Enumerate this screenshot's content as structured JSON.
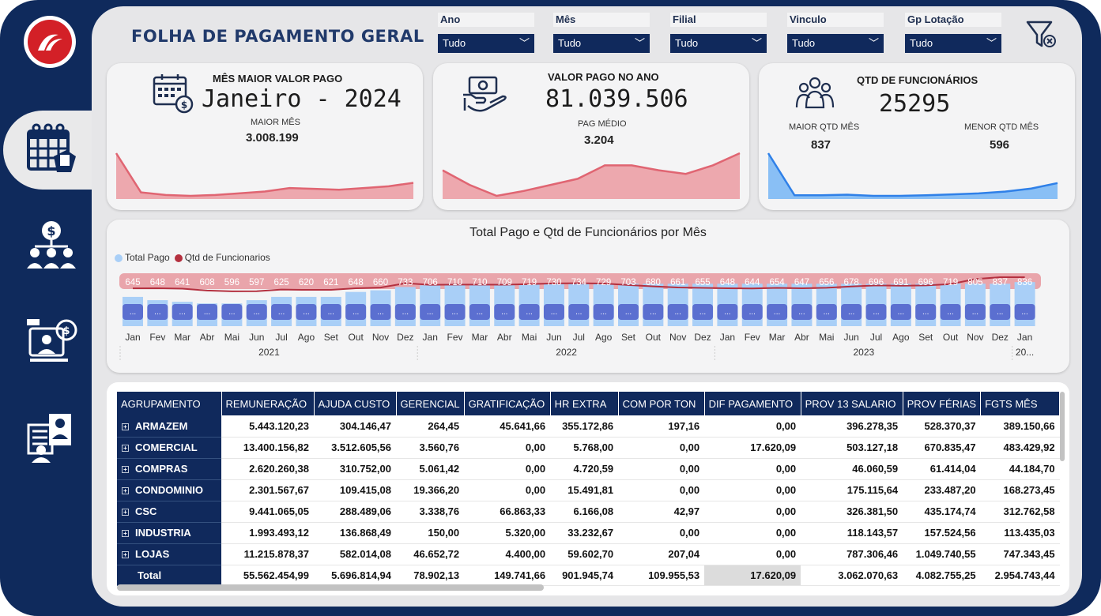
{
  "header": {
    "title": "FOLHA DE PAGAMENTO GERAL"
  },
  "filters": [
    {
      "label": "Ano",
      "value": "Tudo"
    },
    {
      "label": "Mês",
      "value": "Tudo"
    },
    {
      "label": "Filial",
      "value": "Tudo"
    },
    {
      "label": "Vinculo",
      "value": "Tudo"
    },
    {
      "label": "Gp Lotação",
      "value": "Tudo"
    }
  ],
  "cards": {
    "maior_mes": {
      "title": "MÊS MAIOR VALOR PAGO",
      "big": "Janeiro - 2024",
      "sub_label": "MAIOR MÊS",
      "sub_value": "3.008.199",
      "color": "#e58f96"
    },
    "valor_ano": {
      "title": "VALOR PAGO NO ANO",
      "big": "81.039.506",
      "sub_label": "PAG MÉDIO",
      "sub_value": "3.204",
      "color": "#e58f96"
    },
    "funcionarios": {
      "title": "QTD DE FUNCIONÁRIOS",
      "big": "25295",
      "left_label": "MAIOR QTD MÊS",
      "left_value": "837",
      "right_label": "MENOR QTD MÊS",
      "right_value": "596",
      "color": "#3f8ee8"
    }
  },
  "chart_data": {
    "type": "bar",
    "title": "Total Pago e Qtd de Funcionários por Mês",
    "legend": [
      "Total Pago",
      "Qtd de Funcionarios"
    ],
    "colors": {
      "bar": "#a9cff7",
      "line": "#b4303f",
      "label_bg": "#e9a5ab",
      "datalabel_bg": "#5b6fd0"
    },
    "categories": [
      "Jan",
      "Fev",
      "Mar",
      "Abr",
      "Mai",
      "Jun",
      "Jul",
      "Ago",
      "Set",
      "Out",
      "Nov",
      "Dez",
      "Jan",
      "Fev",
      "Mar",
      "Abr",
      "Mai",
      "Jun",
      "Jul",
      "Ago",
      "Set",
      "Out",
      "Nov",
      "Dez",
      "Jan",
      "Fev",
      "Mar",
      "Abr",
      "Mai",
      "Jun",
      "Jul",
      "Ago",
      "Set",
      "Out",
      "Nov",
      "Dez",
      "Jan"
    ],
    "years": [
      "2021",
      "2022",
      "2023",
      "20..."
    ],
    "bar_data_label": "...",
    "series": [
      {
        "name": "Total Pago",
        "values": [
          2.55,
          2.45,
          2.4,
          2.35,
          2.35,
          2.45,
          2.55,
          2.55,
          2.55,
          2.7,
          2.75,
          2.85,
          2.9,
          2.95,
          2.95,
          2.95,
          2.95,
          2.95,
          2.95,
          2.95,
          2.95,
          2.95,
          2.95,
          2.95,
          2.95,
          2.95,
          2.95,
          2.95,
          2.95,
          2.95,
          2.95,
          2.95,
          2.95,
          2.95,
          2.95,
          2.95,
          3.0
        ]
      },
      {
        "name": "Qtd de Funcionarios",
        "values": [
          645,
          648,
          641,
          608,
          596,
          597,
          625,
          620,
          621,
          648,
          660,
          733,
          706,
          710,
          710,
          709,
          719,
          730,
          734,
          729,
          703,
          680,
          661,
          655,
          648,
          644,
          654,
          647,
          656,
          678,
          696,
          691,
          696,
          719,
          805,
          837,
          836
        ]
      }
    ]
  },
  "sparklines": {
    "maior_mes": [
      3.0,
      2.55,
      2.52,
      2.51,
      2.52,
      2.54,
      2.56,
      2.6,
      2.59,
      2.58,
      2.6,
      2.62,
      2.66
    ],
    "valor_ano": [
      44,
      32,
      23,
      27,
      32,
      37,
      48,
      48,
      44,
      41,
      48,
      58
    ],
    "funcionarios": [
      838,
      700,
      700,
      702,
      698,
      698,
      700,
      703,
      706,
      712,
      722,
      740
    ]
  },
  "table": {
    "columns": [
      "AGRUPAMENTO",
      "REMUNERAÇÃO",
      "AJUDA CUSTO",
      "GERENCIAL",
      "GRATIFICAÇÃO",
      "HR EXTRA",
      "COM POR TON",
      "DIF PAGAMENTO",
      "PROV 13 SALARIO",
      "PROV FÉRIAS",
      "FGTS MÊS"
    ],
    "rows": [
      {
        "group": "ARMAZEM",
        "values": [
          "5.443.120,23",
          "304.146,47",
          "264,45",
          "45.641,66",
          "355.172,86",
          "197,16",
          "0,00",
          "396.278,35",
          "528.370,37",
          "389.150,66"
        ]
      },
      {
        "group": "COMERCIAL",
        "values": [
          "13.400.156,82",
          "3.512.605,56",
          "3.560,76",
          "0,00",
          "5.768,00",
          "0,00",
          "17.620,09",
          "503.127,18",
          "670.835,47",
          "483.429,92"
        ]
      },
      {
        "group": "COMPRAS",
        "values": [
          "2.620.260,38",
          "310.752,00",
          "5.061,42",
          "0,00",
          "4.720,59",
          "0,00",
          "0,00",
          "46.060,59",
          "61.414,04",
          "44.184,70"
        ]
      },
      {
        "group": "CONDOMINIO",
        "values": [
          "2.301.567,67",
          "109.415,08",
          "19.366,20",
          "0,00",
          "15.491,81",
          "0,00",
          "0,00",
          "175.115,64",
          "233.487,20",
          "168.273,45"
        ]
      },
      {
        "group": "CSC",
        "values": [
          "9.441.065,05",
          "288.489,06",
          "3.338,76",
          "66.863,33",
          "6.166,08",
          "42,97",
          "0,00",
          "326.381,50",
          "435.174,74",
          "312.762,58"
        ]
      },
      {
        "group": "INDUSTRIA",
        "values": [
          "1.993.493,12",
          "136.868,49",
          "150,00",
          "5.320,00",
          "33.232,67",
          "0,00",
          "0,00",
          "118.143,57",
          "157.524,56",
          "113.435,03"
        ]
      },
      {
        "group": "LOJAS",
        "values": [
          "11.215.878,37",
          "582.014,08",
          "46.652,72",
          "4.400,00",
          "59.602,70",
          "207,04",
          "0,00",
          "787.306,46",
          "1.049.740,55",
          "747.343,45"
        ]
      }
    ],
    "total": {
      "label": "Total",
      "values": [
        "55.562.454,99",
        "5.696.814,94",
        "78.902,13",
        "149.741,66",
        "901.945,74",
        "109.955,53",
        "17.620,09",
        "3.062.070,63",
        "4.082.755,25",
        "2.954.743,44"
      ]
    }
  }
}
